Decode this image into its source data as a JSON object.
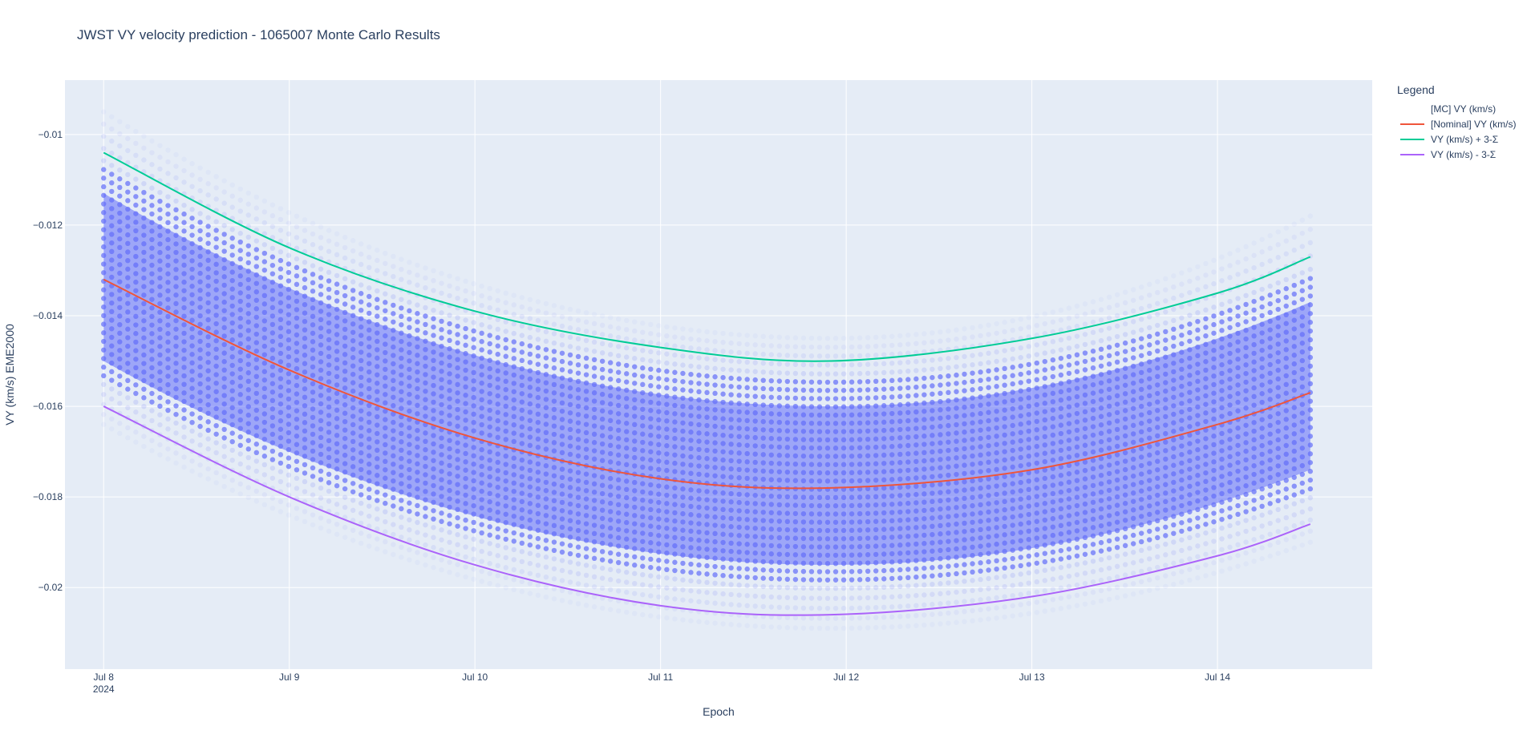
{
  "chart_data": {
    "type": "scatter",
    "title": "JWST VY velocity prediction - 1065007 Monte Carlo Results",
    "xlabel": "Epoch",
    "ylabel": "VY (km/s) EME2000",
    "x_range": [
      "2024-07-07 19:00",
      "2024-07-14 20:00"
    ],
    "ylim": [
      -0.0218,
      -0.0088
    ],
    "x_ticks": [
      {
        "date": "2024-07-08",
        "label": "Jul 8",
        "sublabel": "2024"
      },
      {
        "date": "2024-07-09",
        "label": "Jul 9",
        "sublabel": ""
      },
      {
        "date": "2024-07-10",
        "label": "Jul 10",
        "sublabel": ""
      },
      {
        "date": "2024-07-11",
        "label": "Jul 11",
        "sublabel": ""
      },
      {
        "date": "2024-07-12",
        "label": "Jul 12",
        "sublabel": ""
      },
      {
        "date": "2024-07-13",
        "label": "Jul 13",
        "sublabel": ""
      },
      {
        "date": "2024-07-14",
        "label": "Jul 14",
        "sublabel": ""
      }
    ],
    "y_ticks": [
      {
        "value": -0.01,
        "label": "−0.01"
      },
      {
        "value": -0.012,
        "label": "−0.012"
      },
      {
        "value": -0.014,
        "label": "−0.014"
      },
      {
        "value": -0.016,
        "label": "−0.016"
      },
      {
        "value": -0.018,
        "label": "−0.018"
      },
      {
        "value": -0.02,
        "label": "−0.02"
      }
    ],
    "grid": true,
    "legend": {
      "title": "Legend",
      "placement": "right"
    },
    "x": [
      "2024-07-08 00:00",
      "2024-07-09 00:00",
      "2024-07-10 00:00",
      "2024-07-11 00:00",
      "2024-07-11 22:00",
      "2024-07-13 00:00",
      "2024-07-14 00:00",
      "2024-07-14 12:00"
    ],
    "series": [
      {
        "name": "[Nominal] VY (km/s)",
        "color": "#EF553B",
        "mode": "line",
        "values": [
          -0.0132,
          -0.0152,
          -0.0167,
          -0.0176,
          -0.0178,
          -0.0174,
          -0.0164,
          -0.0157
        ]
      },
      {
        "name": "VY (km/s) + 3-Σ",
        "color": "#00CC96",
        "mode": "line",
        "values": [
          -0.0104,
          -0.0125,
          -0.0139,
          -0.0147,
          -0.015,
          -0.0145,
          -0.0135,
          -0.0127
        ]
      },
      {
        "name": "VY (km/s) - 3-Σ",
        "color": "#AB63FA",
        "mode": "line",
        "values": [
          -0.016,
          -0.018,
          -0.0195,
          -0.0204,
          -0.0206,
          -0.0202,
          -0.0193,
          -0.0186
        ]
      }
    ],
    "monte_carlo": {
      "name": "[MC] VY (km/s)",
      "color": "#636EFA",
      "mode": "markers",
      "x_start": "2024-07-08 00:00",
      "x_end": "2024-07-14 12:00",
      "x_min": "2024-07-11 22:00",
      "upper_envelope": [
        -0.0095,
        -0.0145,
        -0.0118
      ],
      "dense_upper": [
        -0.0106,
        -0.0153,
        -0.013
      ],
      "dense_lower": [
        -0.0155,
        -0.02,
        -0.018
      ],
      "lower_envelope": [
        -0.0164,
        -0.0209,
        -0.019
      ]
    }
  }
}
